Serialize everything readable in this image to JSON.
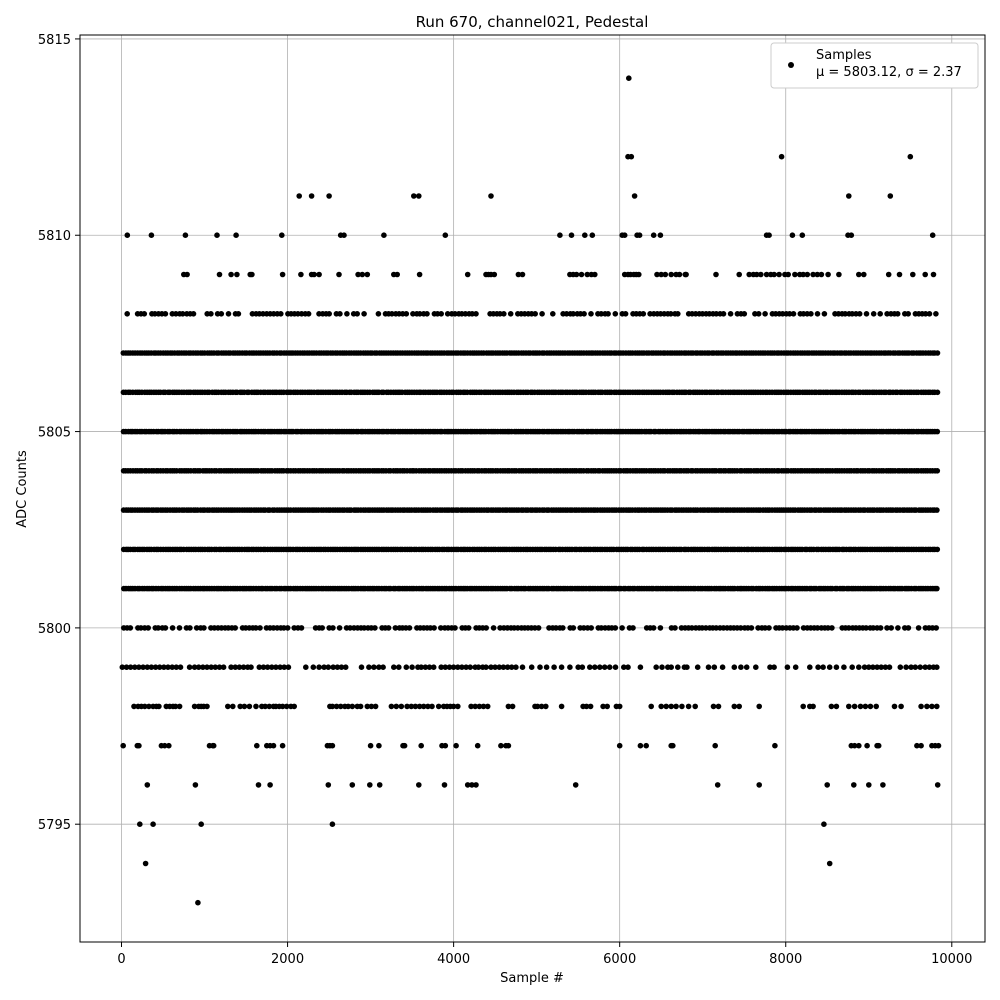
{
  "chart_data": {
    "type": "scatter",
    "title": "Run 670, channel021, Pedestal",
    "xlabel": "Sample #",
    "ylabel": "ADC Counts",
    "xlim": [
      -500,
      10400
    ],
    "ylim": [
      5792,
      5815.1
    ],
    "xticks": [
      0,
      2000,
      4000,
      6000,
      8000,
      10000
    ],
    "yticks": [
      5795,
      5800,
      5805,
      5810,
      5815
    ],
    "grid": true,
    "legend_position": "top-right",
    "series": [
      {
        "name": "Samples",
        "color": "#000000",
        "levels": [
          {
            "y": 5793,
            "x": [
              920
            ]
          },
          {
            "y": 5794,
            "x": [
              290,
              8530
            ]
          },
          {
            "y": 5795,
            "x": [
              220,
              380,
              960,
              2540,
              8460
            ]
          },
          {
            "y": 5796,
            "x": [
              310,
              890,
              1650,
              1790,
              2490,
              2780,
              2990,
              3110,
              3580,
              3890,
              4170,
              4220,
              4270,
              5470,
              7180,
              7680,
              8500,
              8820,
              9000,
              9170,
              9830
            ]
          },
          {
            "y": 5797,
            "x": [
              20,
              190,
              210,
              480,
              520,
              570,
              1060,
              1100,
              1110,
              1630,
              1750,
              1790,
              1830,
              1940,
              2480,
              2510,
              2540,
              3000,
              3100,
              3390,
              3410,
              3610,
              3860,
              3900,
              4030,
              4290,
              4570,
              4630,
              4660,
              6000,
              6250,
              6320,
              6620,
              6640,
              7150,
              7870,
              8790,
              8830,
              8880,
              8980,
              9100,
              9120,
              9580,
              9630,
              9760,
              9800,
              9840
            ]
          },
          {
            "y": 5798,
            "x": [
              150,
              200,
              240,
              280,
              330,
              380,
              420,
              450,
              540,
              580,
              620,
              650,
              700,
              880,
              930,
              960,
              990,
              1030,
              1280,
              1340,
              1430,
              1480,
              1540,
              1620,
              1690,
              1730,
              1780,
              1830,
              1860,
              1900,
              1940,
              1990,
              2040,
              2080,
              2510,
              2540,
              2590,
              2640,
              2690,
              2730,
              2780,
              2840,
              2880,
              2960,
              3010,
              3060,
              3250,
              3310,
              3370,
              3440,
              3490,
              3540,
              3590,
              3640,
              3690,
              3740,
              3820,
              3880,
              3920,
              3960,
              4000,
              4050,
              4210,
              4260,
              4310,
              4360,
              4410,
              4660,
              4710,
              4980,
              5010,
              5060,
              5110,
              5300,
              5560,
              5600,
              5650,
              5800,
              5850,
              5960,
              6000,
              6380,
              6500,
              6560,
              6620,
              6680,
              6750,
              6830,
              6910,
              7130,
              7190,
              7380,
              7440,
              7680,
              8210,
              8290,
              8330,
              8550,
              8610,
              8760,
              8830,
              8900,
              8960,
              9020,
              9090,
              9310,
              9390,
              9630,
              9700,
              9760,
              9820
            ]
          },
          {
            "y": 5799,
            "x": [
              10,
              60,
              110,
              160,
              210,
              260,
              310,
              360,
              410,
              460,
              510,
              560,
              610,
              660,
              710,
              820,
              880,
              930,
              980,
              1030,
              1080,
              1130,
              1180,
              1230,
              1320,
              1370,
              1420,
              1470,
              1520,
              1560,
              1660,
              1710,
              1760,
              1810,
              1860,
              1910,
              1960,
              2010,
              2220,
              2310,
              2380,
              2440,
              2490,
              2550,
              2600,
              2650,
              2700,
              2890,
              2980,
              3040,
              3100,
              3150,
              3280,
              3340,
              3430,
              3500,
              3570,
              3610,
              3660,
              3710,
              3760,
              3850,
              3900,
              3950,
              4000,
              4050,
              4100,
              4150,
              4200,
              4260,
              4300,
              4350,
              4390,
              4450,
              4500,
              4550,
              4600,
              4650,
              4700,
              4750,
              4830,
              4940,
              5040,
              5120,
              5210,
              5300,
              5400,
              5500,
              5550,
              5640,
              5700,
              5760,
              5820,
              5880,
              5950,
              6050,
              6100,
              6250,
              6440,
              6510,
              6580,
              6620,
              6700,
              6780,
              6810,
              6940,
              7070,
              7140,
              7240,
              7380,
              7460,
              7530,
              7640,
              7810,
              7860,
              8020,
              8120,
              8290,
              8390,
              8450,
              8530,
              8610,
              8700,
              8800,
              8880,
              8950,
              9000,
              9050,
              9100,
              9150,
              9200,
              9250,
              9380,
              9450,
              9510,
              9560,
              9620,
              9680,
              9730,
              9780,
              9820
            ]
          }
        ],
        "dense_levels": [
          5800,
          5801,
          5802,
          5803,
          5804,
          5805,
          5806,
          5807,
          5808
        ],
        "sparse_levels": [
          {
            "y": 5809,
            "x": [
              750,
              790,
              1180,
              1320,
              1390,
              1550,
              1570,
              1940,
              2160,
              2290,
              2320,
              2380,
              2620,
              2850,
              2900,
              2960,
              3280,
              3320,
              3590,
              4170,
              4390,
              4420,
              4450,
              4490,
              4780,
              4830,
              5400,
              5440,
              5480,
              5540,
              5610,
              5660,
              5700,
              6060,
              6100,
              6130,
              6170,
              6200,
              6230,
              6450,
              6500,
              6550,
              6620,
              6680,
              6720,
              6790,
              6800,
              7160,
              7440,
              7560,
              7610,
              7650,
              7700,
              7770,
              7820,
              7860,
              7920,
              7990,
              8030,
              8110,
              8170,
              8210,
              8260,
              8330,
              8380,
              8430,
              8510,
              8640,
              8880,
              8940,
              9240,
              9370,
              9530,
              9680,
              9780
            ]
          },
          {
            "y": 5810,
            "x": [
              70,
              360,
              770,
              1150,
              1380,
              1930,
              2640,
              2680,
              3160,
              3900,
              5280,
              5420,
              5580,
              5670,
              6030,
              6060,
              6210,
              6240,
              6410,
              6490,
              7770,
              7800,
              8080,
              8200,
              8750,
              8790,
              9770
            ]
          },
          {
            "y": 5811,
            "x": [
              2140,
              2290,
              2500,
              3520,
              3580,
              4450,
              6180,
              8760,
              9260
            ]
          },
          {
            "y": 5812,
            "x": [
              6100,
              6140,
              7950,
              9500
            ]
          },
          {
            "y": 5814,
            "x": [
              6110
            ]
          }
        ],
        "dense_range": [
          20,
          9840
        ]
      }
    ],
    "legend": {
      "label": "Samples",
      "stats": "μ = 5803.12, σ = 2.37"
    }
  }
}
